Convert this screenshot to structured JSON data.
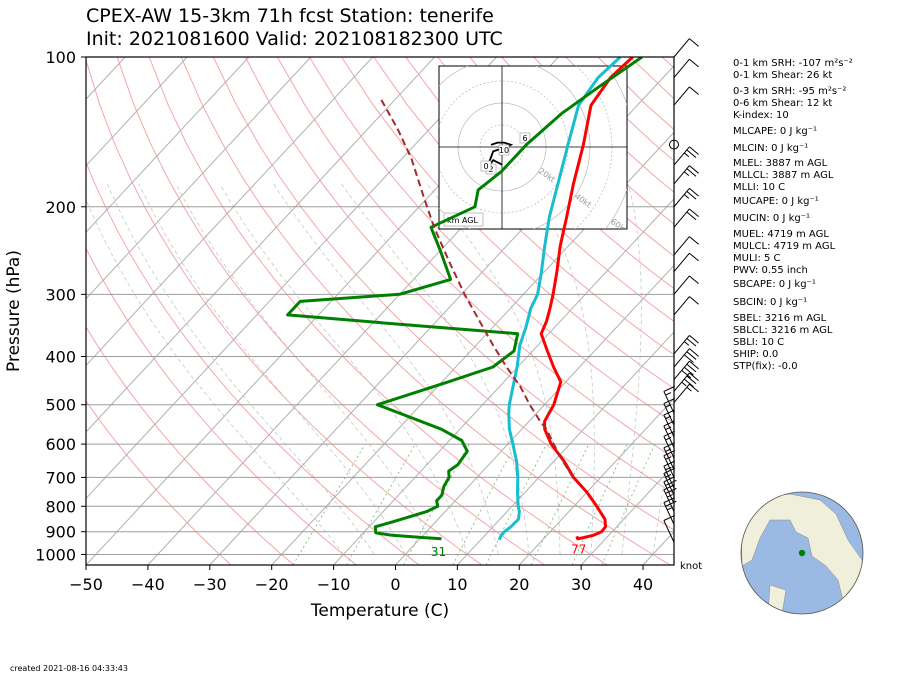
{
  "title": {
    "line1": "CPEX-AW 15-3km  71h fcst  Station: tenerife",
    "line2": "Init: 2021081600  Valid: 202108182300 UTC"
  },
  "footer": {
    "created": "created 2021-08-16 04:33:43"
  },
  "colors": {
    "temperature": "#ff0000",
    "dewpoint": "#008000",
    "wetbulb": "#17becf",
    "parcel": "#a52a2a",
    "isobar": "#9e9e9e",
    "isotherm": "#b0b0b0",
    "dry_adiabat": "#f4a6a6",
    "moist_adiabat": "#c8c8c8",
    "mixing_ratio": "#80c080",
    "globe_land": "#efefdc",
    "globe_ocean": "#9ab9e3",
    "station_marker": "#008000"
  },
  "indices": [
    "0-1 km SRH: -107 m²s⁻²",
    "0-1 km Shear: 26 kt",
    "0-3 km SRH: -95 m²s⁻²",
    "0-6 km Shear: 12 kt",
    "K-index: 10",
    "MLCAPE: 0 J kg⁻¹",
    "MLCIN: 0 J kg⁻¹",
    "MLEL: 3887 m AGL",
    "MLLCL: 3887 m AGL",
    "MLLI: 10 C",
    "MUCAPE: 0 J kg⁻¹",
    "MUCIN: 0 J kg⁻¹",
    "MUEL: 4719 m AGL",
    "MULCL: 4719 m AGL",
    "MULI: 5 C",
    "PWV: 0.55 inch",
    "SBCAPE: 0 J kg⁻¹",
    "SBCIN: 0 J kg⁻¹",
    "SBEL: 3216 m AGL",
    "SBLCL: 3216 m AGL",
    "SBLI: 10 C",
    "SHIP: 0.0",
    "STP(fix): -0.0"
  ],
  "hodograph": {
    "rings": [
      "20kt",
      "40kt",
      "60kt",
      "80kt"
    ],
    "height_labels": [
      "6",
      "10",
      "2",
      "0"
    ],
    "units_label": "km AGL"
  },
  "barb_units": "knot",
  "chart_data": {
    "type": "line",
    "subtype": "skew-T log-P",
    "xlabel": "Temperature (C)",
    "ylabel": "Pressure (hPa)",
    "xlim": [
      -50,
      45
    ],
    "ylim": [
      1050,
      100
    ],
    "y_scale": "log",
    "x_ticks": [
      "−50",
      "−40",
      "−30",
      "−20",
      "−10",
      "0",
      "10",
      "20",
      "30",
      "40"
    ],
    "x_tick_values": [
      -50,
      -40,
      -30,
      -20,
      -10,
      0,
      10,
      20,
      30,
      40
    ],
    "y_ticks": [
      "100",
      "200",
      "300",
      "400",
      "500",
      "600",
      "700",
      "800",
      "900",
      "1000"
    ],
    "y_tick_values": [
      100,
      200,
      300,
      400,
      500,
      600,
      700,
      800,
      900,
      1000
    ],
    "grid": true,
    "surface_labels": {
      "dewpoint_f": "31",
      "temperature_f": "77"
    },
    "series": [
      {
        "id": "temperature",
        "points": [
          [
            920,
            25.0
          ],
          [
            930,
            25.5
          ],
          [
            925,
            26.3
          ],
          [
            915,
            27.5
          ],
          [
            900,
            28.3
          ],
          [
            880,
            28.2
          ],
          [
            850,
            27.0
          ],
          [
            800,
            23.7
          ],
          [
            750,
            20.0
          ],
          [
            700,
            15.6
          ],
          [
            650,
            11.7
          ],
          [
            600,
            7.0
          ],
          [
            560,
            3.7
          ],
          [
            540,
            2.5
          ],
          [
            500,
            1.5
          ],
          [
            450,
            -0.8
          ],
          [
            420,
            -4.2
          ],
          [
            390,
            -7.6
          ],
          [
            360,
            -11.2
          ],
          [
            340,
            -12.2
          ],
          [
            320,
            -13.6
          ],
          [
            300,
            -15.2
          ],
          [
            270,
            -18.0
          ],
          [
            240,
            -21.3
          ],
          [
            210,
            -24.6
          ],
          [
            180,
            -28.5
          ],
          [
            150,
            -32.8
          ],
          [
            125,
            -37.5
          ],
          [
            110,
            -38.5
          ],
          [
            100,
            -38.0
          ]
        ]
      },
      {
        "id": "wetbulb",
        "points": [
          [
            935,
            13.0
          ],
          [
            920,
            12.7
          ],
          [
            900,
            12.6
          ],
          [
            880,
            12.9
          ],
          [
            850,
            13.0
          ],
          [
            820,
            12.0
          ],
          [
            800,
            11.0
          ],
          [
            750,
            8.8
          ],
          [
            700,
            6.6
          ],
          [
            650,
            4.0
          ],
          [
            600,
            0.8
          ],
          [
            560,
            -2.0
          ],
          [
            520,
            -4.5
          ],
          [
            500,
            -5.7
          ],
          [
            460,
            -7.8
          ],
          [
            420,
            -10.1
          ],
          [
            380,
            -12.9
          ],
          [
            350,
            -14.6
          ],
          [
            320,
            -16.7
          ],
          [
            300,
            -17.7
          ],
          [
            270,
            -20.5
          ],
          [
            240,
            -23.8
          ],
          [
            210,
            -27.4
          ],
          [
            180,
            -31.0
          ],
          [
            150,
            -35.3
          ],
          [
            125,
            -39.5
          ],
          [
            110,
            -40.5
          ],
          [
            100,
            -40.0
          ]
        ]
      },
      {
        "id": "dewpoint",
        "points": [
          [
            930,
            3.5
          ],
          [
            925,
            0.5
          ],
          [
            915,
            -5.0
          ],
          [
            905,
            -8.0
          ],
          [
            880,
            -9.0
          ],
          [
            860,
            -7.0
          ],
          [
            840,
            -5.0
          ],
          [
            820,
            -3.0
          ],
          [
            800,
            -2.0
          ],
          [
            780,
            -3.0
          ],
          [
            760,
            -3.0
          ],
          [
            730,
            -4.0
          ],
          [
            700,
            -4.5
          ],
          [
            680,
            -5.5
          ],
          [
            660,
            -5.0
          ],
          [
            620,
            -5.5
          ],
          [
            590,
            -8.0
          ],
          [
            560,
            -13.0
          ],
          [
            500,
            -27.0
          ],
          [
            450,
            -19.0
          ],
          [
            420,
            -14.0
          ],
          [
            390,
            -13.0
          ],
          [
            360,
            -15.0
          ],
          [
            345,
            -35.0
          ],
          [
            330,
            -55.0
          ],
          [
            310,
            -55.0
          ],
          [
            300,
            -40.0
          ],
          [
            280,
            -34.0
          ],
          [
            245,
            -40.0
          ],
          [
            220,
            -45.0
          ],
          [
            200,
            -41.0
          ],
          [
            185,
            -43.0
          ],
          [
            170,
            -42.0
          ],
          [
            150,
            -42.0
          ],
          [
            130,
            -41.0
          ],
          [
            115,
            -39.0
          ],
          [
            100,
            -36.5
          ]
        ]
      },
      {
        "id": "parcel",
        "dashed": true,
        "points": [
          [
            700,
            15.5
          ],
          [
            650,
            11.5
          ],
          [
            600,
            7.4
          ],
          [
            560,
            4.0
          ],
          [
            540,
            1.8
          ],
          [
            500,
            -2.4
          ],
          [
            460,
            -6.6
          ],
          [
            420,
            -11.8
          ],
          [
            380,
            -17.2
          ],
          [
            340,
            -23.0
          ],
          [
            300,
            -29.5
          ],
          [
            260,
            -36.5
          ],
          [
            220,
            -44.5
          ],
          [
            190,
            -51.0
          ],
          [
            160,
            -58.5
          ],
          [
            140,
            -65.0
          ],
          [
            120,
            -73.0
          ]
        ]
      }
    ],
    "wind_barbs": [
      {
        "p": 945,
        "speed": 10
      },
      {
        "p": 870,
        "speed": 25
      },
      {
        "p": 820,
        "speed": 25
      },
      {
        "p": 790,
        "speed": 20
      },
      {
        "p": 760,
        "speed": 15
      },
      {
        "p": 735,
        "speed": 15
      },
      {
        "p": 700,
        "speed": 15
      },
      {
        "p": 675,
        "speed": 15
      },
      {
        "p": 640,
        "speed": 15
      },
      {
        "p": 610,
        "speed": 15
      },
      {
        "p": 580,
        "speed": 15
      },
      {
        "p": 550,
        "speed": 15
      },
      {
        "p": 520,
        "speed": 15
      },
      {
        "p": 495,
        "speed": 15
      },
      {
        "p": 470,
        "speed": 35
      },
      {
        "p": 445,
        "speed": 40
      },
      {
        "p": 420,
        "speed": 30
      },
      {
        "p": 395,
        "speed": 25
      },
      {
        "p": 330,
        "speed": 10
      },
      {
        "p": 300,
        "speed": 10
      },
      {
        "p": 270,
        "speed": 10
      },
      {
        "p": 250,
        "speed": 10
      },
      {
        "p": 220,
        "speed": 20
      },
      {
        "p": 200,
        "speed": 25
      },
      {
        "p": 180,
        "speed": 25
      },
      {
        "p": 165,
        "speed": 25
      },
      {
        "p": 150,
        "speed": 0
      },
      {
        "p": 125,
        "speed": 10
      },
      {
        "p": 110,
        "speed": 10
      },
      {
        "p": 100,
        "speed": 10
      }
    ],
    "hodograph_trace": [
      [
        0,
        -8
      ],
      [
        -4,
        -6
      ],
      [
        -7,
        -10
      ],
      [
        -4,
        -2
      ],
      [
        2,
        0
      ],
      [
        4,
        1
      ],
      [
        1,
        2
      ],
      [
        -2,
        2
      ],
      [
        -5,
        1
      ]
    ]
  }
}
